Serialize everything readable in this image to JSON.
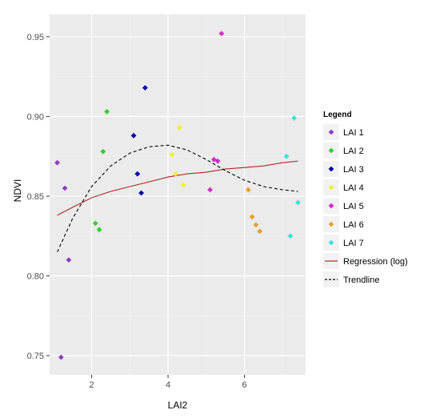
{
  "chart_data": {
    "type": "scatter",
    "xlabel": "LAI2",
    "ylabel": "NDVI",
    "xlim": [
      0.9,
      7.6
    ],
    "ylim": [
      0.738,
      0.964
    ],
    "x_ticks": [
      2,
      4,
      6
    ],
    "x_tick_labels": [
      "2",
      "4",
      "6"
    ],
    "y_ticks": [
      0.75,
      0.8,
      0.85,
      0.9,
      0.95
    ],
    "y_tick_labels": [
      "0.75",
      "0.80",
      "0.85",
      "0.90",
      "0.95"
    ],
    "grid": true,
    "panel_background": "#ebebeb",
    "legend_title": "Legend",
    "legend_position": "right",
    "series": [
      {
        "name": "LAI 1",
        "color": "#8e3fbf",
        "points": [
          [
            1.1,
            0.871
          ],
          [
            1.3,
            0.855
          ],
          [
            1.4,
            0.81
          ],
          [
            1.2,
            0.749
          ]
        ]
      },
      {
        "name": "LAI 2",
        "color": "#2ed22e",
        "points": [
          [
            2.4,
            0.903
          ],
          [
            2.3,
            0.878
          ],
          [
            2.1,
            0.833
          ],
          [
            2.2,
            0.829
          ]
        ]
      },
      {
        "name": "LAI 3",
        "color": "#0000a8",
        "points": [
          [
            3.4,
            0.918
          ],
          [
            3.1,
            0.888
          ],
          [
            3.2,
            0.864
          ],
          [
            3.3,
            0.852
          ]
        ]
      },
      {
        "name": "LAI 4",
        "color": "#f0f032",
        "points": [
          [
            4.3,
            0.893
          ],
          [
            4.1,
            0.876
          ],
          [
            4.2,
            0.864
          ],
          [
            4.4,
            0.857
          ]
        ]
      },
      {
        "name": "LAI 5",
        "color": "#d42cc8",
        "points": [
          [
            5.4,
            0.952
          ],
          [
            5.2,
            0.873
          ],
          [
            5.3,
            0.872
          ],
          [
            5.1,
            0.854
          ]
        ]
      },
      {
        "name": "LAI 6",
        "color": "#e6a12a",
        "points": [
          [
            6.1,
            0.854
          ],
          [
            6.2,
            0.837
          ],
          [
            6.3,
            0.832
          ],
          [
            6.4,
            0.828
          ]
        ]
      },
      {
        "name": "LAI 7",
        "color": "#3fe0d8",
        "points": [
          [
            7.3,
            0.899
          ],
          [
            7.1,
            0.875
          ],
          [
            7.4,
            0.846
          ],
          [
            7.2,
            0.825
          ]
        ]
      }
    ],
    "lines": [
      {
        "name": "Regression (log)",
        "color": "#a52a2a",
        "style": "solid",
        "x": [
          1.1,
          1.5,
          2.0,
          2.5,
          3.0,
          3.5,
          4.0,
          4.5,
          5.0,
          5.5,
          6.0,
          6.5,
          7.0,
          7.4
        ],
        "y": [
          0.838,
          0.843,
          0.849,
          0.853,
          0.856,
          0.859,
          0.862,
          0.864,
          0.865,
          0.867,
          0.868,
          0.869,
          0.871,
          0.872
        ]
      },
      {
        "name": "Trendline",
        "color": "#000000",
        "style": "dashed",
        "x": [
          1.1,
          1.5,
          2.0,
          2.5,
          3.0,
          3.5,
          4.0,
          4.5,
          5.0,
          5.5,
          6.0,
          6.5,
          7.0,
          7.4
        ],
        "y": [
          0.815,
          0.836,
          0.856,
          0.869,
          0.877,
          0.881,
          0.882,
          0.879,
          0.873,
          0.866,
          0.86,
          0.856,
          0.854,
          0.853
        ]
      }
    ]
  }
}
